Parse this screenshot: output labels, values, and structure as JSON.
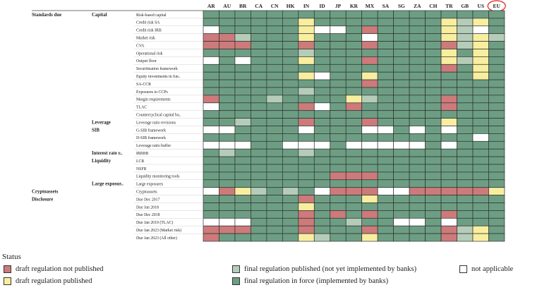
{
  "colors": {
    "draft_not_published": "#cd7a7a",
    "draft_published": "#f8ee9f",
    "final_published": "#b5cdb8",
    "in_force": "#6d9e84",
    "not_applicable": "#ffffff",
    "highlight_circle": "#e0201c"
  },
  "chart_data": {
    "type": "heatmap",
    "columns": [
      "AR",
      "AU",
      "BR",
      "CA",
      "CN",
      "HK",
      "IN",
      "ID",
      "JP",
      "KR",
      "MX",
      "SA",
      "SG",
      "ZA",
      "CH",
      "TR",
      "GB",
      "US",
      "EU"
    ],
    "highlighted_column": "EU",
    "status_codes": {
      "R": "draft regulation not published",
      "Y": "draft regulation published",
      "L": "final regulation published (not yet implemented by banks)",
      "G": "final regulation in force (implemented by banks)",
      "W": "not applicable"
    },
    "rows": [
      {
        "group": "Standards due",
        "sub": "Capital",
        "label": "Risk-based capital",
        "cells": "GGGGGGGGGGGGGGGGGGG"
      },
      {
        "group": "",
        "sub": "",
        "label": "Credit risk SA",
        "cells": "GGGGGGYGGGGGGGGYLYG"
      },
      {
        "group": "",
        "sub": "",
        "label": "Credit risk IRB",
        "cells": "WGGGGGYWWGRGGGGYLWG"
      },
      {
        "group": "",
        "sub": "",
        "label": "Market risk",
        "cells": "RRLGGGYGGGWGGGGYLYL"
      },
      {
        "group": "",
        "sub": "",
        "label": "CVA",
        "cells": "RRRGGGRGGGRGGGGRLYG"
      },
      {
        "group": "",
        "sub": "",
        "label": "Operational risk",
        "cells": "GGGGGGLGGGGGGGGYGYG"
      },
      {
        "group": "",
        "sub": "",
        "label": "Output floor",
        "cells": "WGWGGGYGGGRGGGGYLYG"
      },
      {
        "group": "",
        "sub": "",
        "label": "Securitisation framework",
        "cells": "GGGGGGGGGGGGGGGRGYG"
      },
      {
        "group": "",
        "sub": "",
        "label": "Equity investments in fun..",
        "cells": "GGGGGGYWGGYGGGGGGYG"
      },
      {
        "group": "",
        "sub": "",
        "label": "SA-CCR",
        "cells": "GGGGGGGGGGRGGGGGGGG"
      },
      {
        "group": "",
        "sub": "",
        "label": "Exposures to CCPs",
        "cells": "GGGGGGLGGGGGGGGGGGG"
      },
      {
        "group": "",
        "sub": "",
        "label": "Margin requirements",
        "cells": "RGGGLGGGGYLGGGGRGGG"
      },
      {
        "group": "",
        "sub": "",
        "label": "TLAC",
        "cells": "WGGGGGRWGRGGGGGRGGG"
      },
      {
        "group": "",
        "sub": "",
        "label": "Countercyclical capital bu..",
        "cells": "GGGGGGGGGGGGGGGGGGG"
      },
      {
        "group": "",
        "sub": "Leverage",
        "label": "Leverage ratio revisions",
        "cells": "GGLGGGRGGGRGGGGYGGG"
      },
      {
        "group": "",
        "sub": "SIB",
        "label": "G-SIB framework",
        "cells": "WWGGGGWGGGWWGWGWGGG"
      },
      {
        "group": "",
        "sub": "",
        "label": "D-SIB framework",
        "cells": "GGGGGGGGGGGGGGGGGWG"
      },
      {
        "group": "",
        "sub": "",
        "label": "Leverage ratio buffer",
        "cells": "WWWGGWWWGWWWWWGWGGG"
      },
      {
        "group": "",
        "sub": "Interest rate r..",
        "label": "IRRBB",
        "cells": "GLGGGGLGGGGGGGGGGGG"
      },
      {
        "group": "",
        "sub": "Liquidity",
        "label": "LCR",
        "cells": "GGGGGGGGGGGGGGGGGGG"
      },
      {
        "group": "",
        "sub": "",
        "label": "NSFR",
        "cells": "GGGGGGGGGGGGGGGGGGG"
      },
      {
        "group": "",
        "sub": "",
        "label": "Liquidity monitoring tools",
        "cells": "GGGGGGGGRRRGGGGGGGG"
      },
      {
        "group": "",
        "sub": "Large exposur..",
        "label": "Large exposures",
        "cells": "GGGGGGGGGGGGGGGGGGG"
      },
      {
        "group": "Cryptoassets",
        "sub": "",
        "label": "Cryptoassets",
        "cells": "WRYLGLGWRRRWWRRRRRY"
      },
      {
        "group": "Disclosure",
        "sub": "",
        "label": "Due Dec 2017",
        "cells": "GGGGGGRGGGYGGGGGGGG"
      },
      {
        "group": "",
        "sub": "",
        "label": "Due Jan 2018",
        "cells": "GGGGGGYGGGGGGGGGGGG"
      },
      {
        "group": "",
        "sub": "",
        "label": "Due Dec 2018",
        "cells": "GGGGGGRGRGRGGGGRGGG"
      },
      {
        "group": "",
        "sub": "",
        "label": "Due Jan 2019 (TLAC)",
        "cells": "WWWGGGRGGLGGWWGWGGG"
      },
      {
        "group": "",
        "sub": "",
        "label": "Due Jan 2023 (Market risk)",
        "cells": "RRRGGGRGGGRGGGGRLYG"
      },
      {
        "group": "",
        "sub": "",
        "label": "Due Jan 2023 (All other)",
        "cells": "RGGGGGYLGGYGGGGRLYG"
      }
    ]
  },
  "legend": {
    "title": "Status",
    "items": [
      {
        "key": "R",
        "label": "draft regulation not published"
      },
      {
        "key": "L",
        "label": "final regulation published (not yet implemented by banks)"
      },
      {
        "key": "W",
        "label": "not applicable"
      },
      {
        "key": "Y",
        "label": "draft regulation published"
      },
      {
        "key": "G",
        "label": "final regulation in force (implemented by banks)"
      }
    ]
  }
}
